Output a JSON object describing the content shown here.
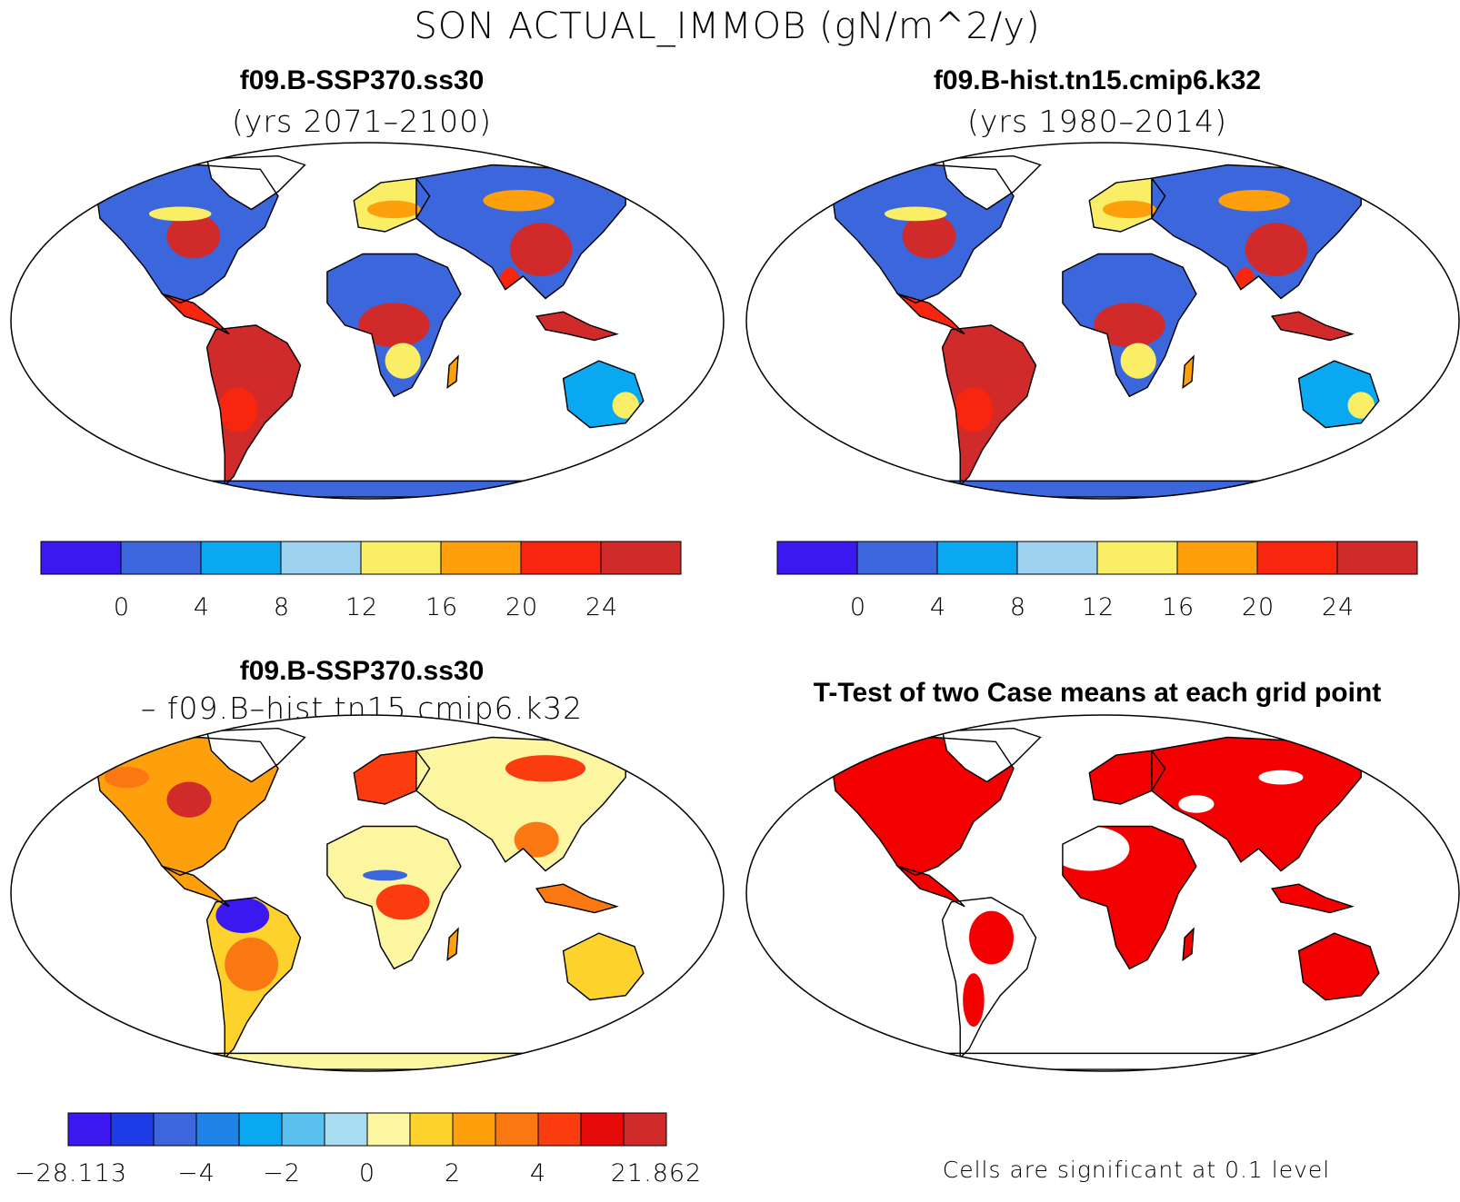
{
  "title": "SON ACTUAL_IMMOB (gN/m^2/y)",
  "palettes": {
    "field": [
      "#3c18f0",
      "#3c66dc",
      "#0aa8f0",
      "#9ed2ef",
      "#f9ee66",
      "#fda00c",
      "#f9260f",
      "#d12a2a"
    ],
    "diff": [
      "#3c18f0",
      "#1e3ce6",
      "#3c66dc",
      "#1e82e6",
      "#0aa8f0",
      "#5ac0f0",
      "#a8dcf0",
      "#fdf6a0",
      "#fdd22c",
      "#fda00c",
      "#fa7812",
      "#fa3c0f",
      "#e60a0a",
      "#d12a2a"
    ],
    "land": "#3c66dc",
    "ttest": "#f40000"
  },
  "panels": [
    {
      "id": "future",
      "case_name": "f09.B-SSP370.ss30",
      "subtitle": "(yrs 2071–2100)",
      "colorbar_ticks": [
        "0",
        "4",
        "8",
        "12",
        "16",
        "20",
        "24"
      ]
    },
    {
      "id": "historical",
      "case_name": "f09.B-hist.tn15.cmip6.k32",
      "subtitle": "(yrs 1980–2014)",
      "colorbar_ticks": [
        "0",
        "4",
        "8",
        "12",
        "16",
        "20",
        "24"
      ]
    },
    {
      "id": "difference",
      "case_name": "f09.B-SSP370.ss30",
      "subtitle": "– f09.B–hist.tn15.cmip6.k32",
      "colorbar_ticks": [
        "−28.113",
        "−4",
        "−2",
        "0",
        "2",
        "4",
        "21.862"
      ]
    },
    {
      "id": "ttest",
      "case_name": "T-Test of two Case means at each grid point",
      "note": "Cells are significant at 0.1 level"
    }
  ]
}
